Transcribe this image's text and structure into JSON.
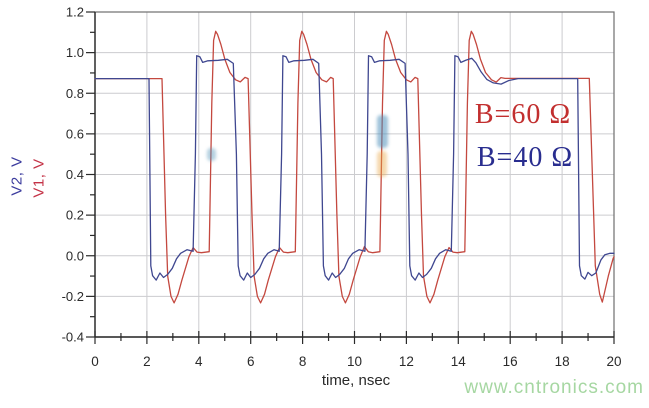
{
  "watermark": {
    "text": "www.cntronics.com",
    "color": "#a6d7a2"
  },
  "chart_data": {
    "type": "line",
    "title": "",
    "xlabel": "time, nsec",
    "ylabel_left": [
      {
        "text": "V2, V",
        "color": "#3c3c9e"
      },
      {
        "text": "V1, V",
        "color": "#c43347"
      }
    ],
    "xlim": [
      0,
      20
    ],
    "ylim": [
      -0.4,
      1.2
    ],
    "xticks": [
      0,
      2,
      4,
      6,
      8,
      10,
      12,
      14,
      16,
      18,
      20
    ],
    "xtick_labels": [
      "0",
      "2",
      "4",
      "6",
      "8",
      "10",
      "12",
      "14",
      "16",
      "18",
      "20"
    ],
    "x_minor_step": 1,
    "yticks": [
      -0.4,
      -0.2,
      0.0,
      0.2,
      0.4,
      0.6,
      0.8,
      1.0,
      1.2
    ],
    "ytick_labels": [
      "-0.4",
      "-0.2",
      "0.0",
      "0.2",
      "0.4",
      "0.6",
      "0.8",
      "1.0",
      "1.2"
    ],
    "y_minor_step": 0.1,
    "grid": true,
    "legend_position": "none",
    "axis_color": "#2a2a2a",
    "grid_color": "#cccccf",
    "border_color": "#6f6f6f",
    "annotations": [
      {
        "text": "B=60 Ω",
        "color": "#c22f2f"
      },
      {
        "text": "B=40 Ω",
        "color": "#292d8f"
      }
    ],
    "series": [
      {
        "name": "V1",
        "color": "#c4483f",
        "points": [
          [
            0,
            0.872
          ],
          [
            2.58,
            0.872
          ],
          [
            2.72,
            0.2
          ],
          [
            2.8,
            -0.1
          ],
          [
            2.93,
            -0.2
          ],
          [
            3.05,
            -0.232
          ],
          [
            3.2,
            -0.19
          ],
          [
            3.35,
            -0.12
          ],
          [
            3.62,
            -0.005
          ],
          [
            3.78,
            0.04
          ],
          [
            3.93,
            0.018
          ],
          [
            4.1,
            0.015
          ],
          [
            4.4,
            0.02
          ],
          [
            4.5,
            0.75
          ],
          [
            4.57,
            1.06
          ],
          [
            4.65,
            1.105
          ],
          [
            4.72,
            1.09
          ],
          [
            4.85,
            1.04
          ],
          [
            5.0,
            0.968
          ],
          [
            5.2,
            0.902
          ],
          [
            5.42,
            0.866
          ],
          [
            5.6,
            0.856
          ],
          [
            5.78,
            0.878
          ],
          [
            5.9,
            0.872
          ],
          [
            6.05,
            0.2
          ],
          [
            6.13,
            -0.1
          ],
          [
            6.26,
            -0.2
          ],
          [
            6.38,
            -0.232
          ],
          [
            6.53,
            -0.19
          ],
          [
            6.68,
            -0.12
          ],
          [
            6.95,
            -0.005
          ],
          [
            7.11,
            0.04
          ],
          [
            7.26,
            0.018
          ],
          [
            7.43,
            0.015
          ],
          [
            7.72,
            0.02
          ],
          [
            7.82,
            0.75
          ],
          [
            7.89,
            1.06
          ],
          [
            7.97,
            1.105
          ],
          [
            8.04,
            1.09
          ],
          [
            8.17,
            1.04
          ],
          [
            8.32,
            0.968
          ],
          [
            8.52,
            0.902
          ],
          [
            8.74,
            0.866
          ],
          [
            8.92,
            0.856
          ],
          [
            9.08,
            0.878
          ],
          [
            9.18,
            0.872
          ],
          [
            9.32,
            0.2
          ],
          [
            9.4,
            -0.1
          ],
          [
            9.53,
            -0.2
          ],
          [
            9.65,
            -0.232
          ],
          [
            9.8,
            -0.19
          ],
          [
            9.95,
            -0.12
          ],
          [
            10.22,
            -0.005
          ],
          [
            10.38,
            0.045
          ],
          [
            10.53,
            0.02
          ],
          [
            10.7,
            0.015
          ],
          [
            10.98,
            0.02
          ],
          [
            11.08,
            0.75
          ],
          [
            11.15,
            1.06
          ],
          [
            11.23,
            1.105
          ],
          [
            11.3,
            1.09
          ],
          [
            11.43,
            1.04
          ],
          [
            11.58,
            0.968
          ],
          [
            11.78,
            0.902
          ],
          [
            12.0,
            0.866
          ],
          [
            12.17,
            0.856
          ],
          [
            12.33,
            0.878
          ],
          [
            12.44,
            0.872
          ],
          [
            12.58,
            0.2
          ],
          [
            12.66,
            -0.1
          ],
          [
            12.79,
            -0.2
          ],
          [
            12.91,
            -0.232
          ],
          [
            13.06,
            -0.19
          ],
          [
            13.21,
            -0.12
          ],
          [
            13.48,
            -0.005
          ],
          [
            13.64,
            0.04
          ],
          [
            13.79,
            0.018
          ],
          [
            13.96,
            0.015
          ],
          [
            14.25,
            0.02
          ],
          [
            14.35,
            0.75
          ],
          [
            14.42,
            1.06
          ],
          [
            14.5,
            1.105
          ],
          [
            14.57,
            1.09
          ],
          [
            14.7,
            1.04
          ],
          [
            14.85,
            0.968
          ],
          [
            15.05,
            0.902
          ],
          [
            15.28,
            0.866
          ],
          [
            15.46,
            0.855
          ],
          [
            15.64,
            0.877
          ],
          [
            15.8,
            0.873
          ],
          [
            19.05,
            0.873
          ],
          [
            19.28,
            -0.05
          ],
          [
            19.45,
            -0.19
          ],
          [
            19.55,
            -0.228
          ],
          [
            19.78,
            -0.1
          ],
          [
            19.97,
            -0.012
          ],
          [
            20,
            -0.005
          ]
        ]
      },
      {
        "name": "V2",
        "color": "#3f4790",
        "points": [
          [
            0,
            0.872
          ],
          [
            2.08,
            0.872
          ],
          [
            2.15,
            -0.05
          ],
          [
            2.22,
            -0.098
          ],
          [
            2.36,
            -0.12
          ],
          [
            2.5,
            -0.085
          ],
          [
            2.64,
            -0.107
          ],
          [
            2.8,
            -0.092
          ],
          [
            2.98,
            -0.062
          ],
          [
            3.14,
            -0.015
          ],
          [
            3.3,
            0.012
          ],
          [
            3.55,
            0.03
          ],
          [
            3.78,
            0.022
          ],
          [
            3.87,
            0.5
          ],
          [
            3.92,
            0.985
          ],
          [
            4.04,
            0.98
          ],
          [
            4.15,
            0.952
          ],
          [
            4.35,
            0.96
          ],
          [
            4.75,
            0.962
          ],
          [
            5.1,
            0.967
          ],
          [
            5.33,
            0.947
          ],
          [
            5.45,
            0.5
          ],
          [
            5.52,
            -0.05
          ],
          [
            5.59,
            -0.098
          ],
          [
            5.73,
            -0.12
          ],
          [
            5.87,
            -0.085
          ],
          [
            6.0,
            -0.107
          ],
          [
            6.16,
            -0.092
          ],
          [
            6.34,
            -0.062
          ],
          [
            6.5,
            -0.015
          ],
          [
            6.66,
            0.012
          ],
          [
            6.9,
            0.03
          ],
          [
            7.1,
            0.022
          ],
          [
            7.19,
            0.5
          ],
          [
            7.24,
            0.985
          ],
          [
            7.36,
            0.98
          ],
          [
            7.47,
            0.952
          ],
          [
            7.67,
            0.96
          ],
          [
            8.07,
            0.962
          ],
          [
            8.4,
            0.967
          ],
          [
            8.62,
            0.947
          ],
          [
            8.73,
            0.5
          ],
          [
            8.8,
            -0.05
          ],
          [
            8.87,
            -0.098
          ],
          [
            9.0,
            -0.12
          ],
          [
            9.14,
            -0.085
          ],
          [
            9.27,
            -0.107
          ],
          [
            9.43,
            -0.092
          ],
          [
            9.61,
            -0.062
          ],
          [
            9.77,
            -0.015
          ],
          [
            9.93,
            0.012
          ],
          [
            10.18,
            0.03
          ],
          [
            10.4,
            0.022
          ],
          [
            10.49,
            0.5
          ],
          [
            10.54,
            0.985
          ],
          [
            10.66,
            0.98
          ],
          [
            10.77,
            0.952
          ],
          [
            10.97,
            0.96
          ],
          [
            11.37,
            0.962
          ],
          [
            11.72,
            0.967
          ],
          [
            11.95,
            0.947
          ],
          [
            12.06,
            0.5
          ],
          [
            12.13,
            -0.05
          ],
          [
            12.2,
            -0.098
          ],
          [
            12.34,
            -0.12
          ],
          [
            12.48,
            -0.085
          ],
          [
            12.62,
            -0.107
          ],
          [
            12.78,
            -0.092
          ],
          [
            12.96,
            -0.062
          ],
          [
            13.12,
            -0.015
          ],
          [
            13.28,
            0.012
          ],
          [
            13.52,
            0.03
          ],
          [
            13.73,
            0.022
          ],
          [
            13.82,
            0.5
          ],
          [
            13.87,
            0.985
          ],
          [
            13.99,
            0.98
          ],
          [
            14.1,
            0.952
          ],
          [
            14.3,
            0.963
          ],
          [
            14.52,
            0.972
          ],
          [
            14.68,
            0.95
          ],
          [
            14.88,
            0.905
          ],
          [
            15.1,
            0.868
          ],
          [
            15.35,
            0.851
          ],
          [
            15.65,
            0.845
          ],
          [
            15.95,
            0.863
          ],
          [
            16.3,
            0.872
          ],
          [
            18.6,
            0.872
          ],
          [
            18.67,
            -0.05
          ],
          [
            18.74,
            -0.098
          ],
          [
            18.88,
            -0.115
          ],
          [
            19.0,
            -0.082
          ],
          [
            19.14,
            -0.098
          ],
          [
            19.3,
            -0.085
          ],
          [
            19.5,
            -0.02
          ],
          [
            19.65,
            0.005
          ],
          [
            19.85,
            0.012
          ],
          [
            20,
            0.012
          ]
        ]
      }
    ]
  }
}
